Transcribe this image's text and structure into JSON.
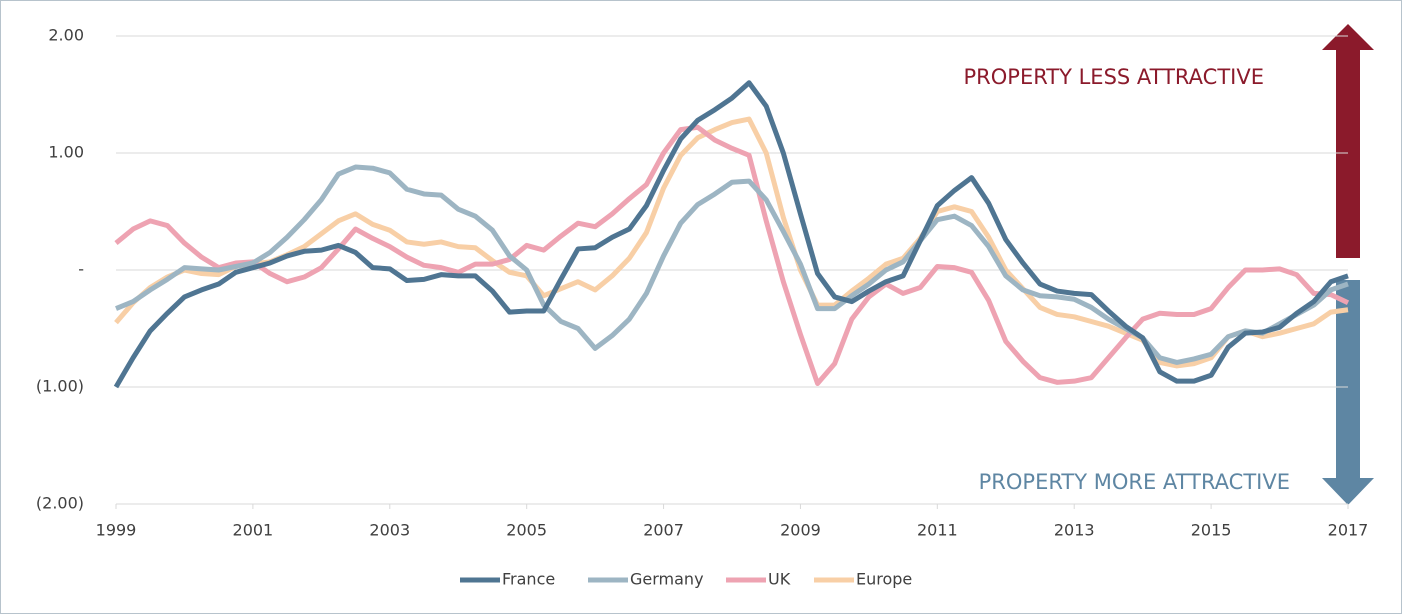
{
  "chart_data": {
    "type": "line",
    "annotations": {
      "top": "PROPERTY LESS ATTRACTIVE",
      "bottom": "PROPERTY MORE ATTRACTIVE"
    },
    "x": [
      1999,
      1999.25,
      1999.5,
      1999.75,
      2000,
      2000.25,
      2000.5,
      2000.75,
      2001,
      2001.25,
      2001.5,
      2001.75,
      2002,
      2002.25,
      2002.5,
      2002.75,
      2003,
      2003.25,
      2003.5,
      2003.75,
      2004,
      2004.25,
      2004.5,
      2004.75,
      2005,
      2005.25,
      2005.5,
      2005.75,
      2006,
      2006.25,
      2006.5,
      2006.75,
      2007,
      2007.25,
      2007.5,
      2007.75,
      2008,
      2008.25,
      2008.5,
      2008.75,
      2009,
      2009.25,
      2009.5,
      2009.75,
      2010,
      2010.25,
      2010.5,
      2010.75,
      2011,
      2011.25,
      2011.5,
      2011.75,
      2012,
      2012.25,
      2012.5,
      2012.75,
      2013,
      2013.25,
      2013.5,
      2013.75,
      2014,
      2014.25,
      2014.5,
      2014.75,
      2015,
      2015.25,
      2015.5,
      2015.75,
      2016,
      2016.25,
      2016.5,
      2016.75,
      2017
    ],
    "series": [
      {
        "name": "France",
        "color": "#4f7592",
        "values": [
          -1.0,
          -0.75,
          -0.52,
          -0.37,
          -0.23,
          -0.17,
          -0.12,
          -0.02,
          0.02,
          0.06,
          0.12,
          0.16,
          0.17,
          0.21,
          0.15,
          0.02,
          0.01,
          -0.09,
          -0.08,
          -0.04,
          -0.05,
          -0.05,
          -0.18,
          -0.36,
          -0.35,
          -0.35,
          -0.08,
          0.18,
          0.19,
          0.28,
          0.35,
          0.55,
          0.85,
          1.12,
          1.28,
          1.37,
          1.47,
          1.6,
          1.4,
          1.0,
          0.48,
          -0.03,
          -0.23,
          -0.27,
          -0.18,
          -0.1,
          -0.05,
          0.25,
          0.55,
          0.68,
          0.79,
          0.57,
          0.26,
          0.06,
          -0.12,
          -0.18,
          -0.2,
          -0.21,
          -0.35,
          -0.48,
          -0.58,
          -0.87,
          -0.95,
          -0.95,
          -0.9,
          -0.66,
          -0.54,
          -0.53,
          -0.49,
          -0.37,
          -0.27,
          -0.1,
          -0.05
        ]
      },
      {
        "name": "Germany",
        "color": "#9db5c3",
        "values": [
          -0.33,
          -0.27,
          -0.17,
          -0.08,
          0.02,
          0.01,
          0.0,
          0.03,
          0.06,
          0.15,
          0.28,
          0.43,
          0.6,
          0.82,
          0.88,
          0.87,
          0.83,
          0.69,
          0.65,
          0.64,
          0.52,
          0.46,
          0.34,
          0.12,
          0.0,
          -0.3,
          -0.44,
          -0.5,
          -0.67,
          -0.56,
          -0.42,
          -0.2,
          0.12,
          0.4,
          0.56,
          0.65,
          0.75,
          0.76,
          0.6,
          0.33,
          0.05,
          -0.33,
          -0.33,
          -0.22,
          -0.12,
          0.0,
          0.07,
          0.25,
          0.43,
          0.46,
          0.38,
          0.2,
          -0.05,
          -0.17,
          -0.22,
          -0.23,
          -0.25,
          -0.32,
          -0.42,
          -0.5,
          -0.58,
          -0.75,
          -0.79,
          -0.76,
          -0.72,
          -0.57,
          -0.52,
          -0.54,
          -0.46,
          -0.38,
          -0.3,
          -0.17,
          -0.12
        ]
      },
      {
        "name": "UK",
        "color": "#eea3b2",
        "values": [
          0.23,
          0.35,
          0.42,
          0.38,
          0.23,
          0.11,
          0.02,
          0.06,
          0.07,
          -0.03,
          -0.1,
          -0.06,
          0.02,
          0.18,
          0.35,
          0.27,
          0.2,
          0.11,
          0.04,
          0.02,
          -0.02,
          0.05,
          0.05,
          0.09,
          0.21,
          0.17,
          0.29,
          0.4,
          0.37,
          0.48,
          0.61,
          0.73,
          1.0,
          1.2,
          1.22,
          1.11,
          1.04,
          0.98,
          0.42,
          -0.1,
          -0.55,
          -0.97,
          -0.8,
          -0.42,
          -0.23,
          -0.12,
          -0.2,
          -0.15,
          0.03,
          0.02,
          -0.02,
          -0.26,
          -0.61,
          -0.78,
          -0.92,
          -0.96,
          -0.95,
          -0.92,
          -0.75,
          -0.58,
          -0.42,
          -0.37,
          -0.38,
          -0.38,
          -0.33,
          -0.15,
          0.0,
          0.0,
          0.01,
          -0.04,
          -0.2,
          -0.21,
          -0.28
        ]
      },
      {
        "name": "Europe",
        "color": "#f8cfa6",
        "values": [
          -0.45,
          -0.28,
          -0.15,
          -0.06,
          0.0,
          -0.03,
          -0.04,
          0.03,
          0.05,
          0.07,
          0.13,
          0.2,
          0.31,
          0.42,
          0.48,
          0.39,
          0.34,
          0.24,
          0.22,
          0.24,
          0.2,
          0.19,
          0.08,
          -0.02,
          -0.05,
          -0.22,
          -0.16,
          -0.1,
          -0.17,
          -0.05,
          0.1,
          0.32,
          0.7,
          0.98,
          1.13,
          1.2,
          1.26,
          1.29,
          1.0,
          0.45,
          0.0,
          -0.3,
          -0.3,
          -0.18,
          -0.07,
          0.05,
          0.1,
          0.27,
          0.5,
          0.54,
          0.5,
          0.28,
          0.0,
          -0.16,
          -0.32,
          -0.38,
          -0.4,
          -0.44,
          -0.48,
          -0.54,
          -0.6,
          -0.79,
          -0.82,
          -0.8,
          -0.75,
          -0.57,
          -0.52,
          -0.57,
          -0.54,
          -0.5,
          -0.46,
          -0.36,
          -0.34
        ]
      }
    ],
    "xlim": [
      1999,
      2017
    ],
    "xticks": [
      1999,
      2001,
      2003,
      2005,
      2007,
      2009,
      2011,
      2013,
      2015,
      2017
    ],
    "ylim": [
      -2,
      2
    ],
    "yticks": [
      {
        "value": 2,
        "label": "2.00"
      },
      {
        "value": 1,
        "label": "1.00"
      },
      {
        "value": 0,
        "label": "-"
      },
      {
        "value": -1,
        "label": "(1.00)"
      },
      {
        "value": -2,
        "label": "(2.00)"
      }
    ],
    "grid": true,
    "legend": "bottom"
  }
}
